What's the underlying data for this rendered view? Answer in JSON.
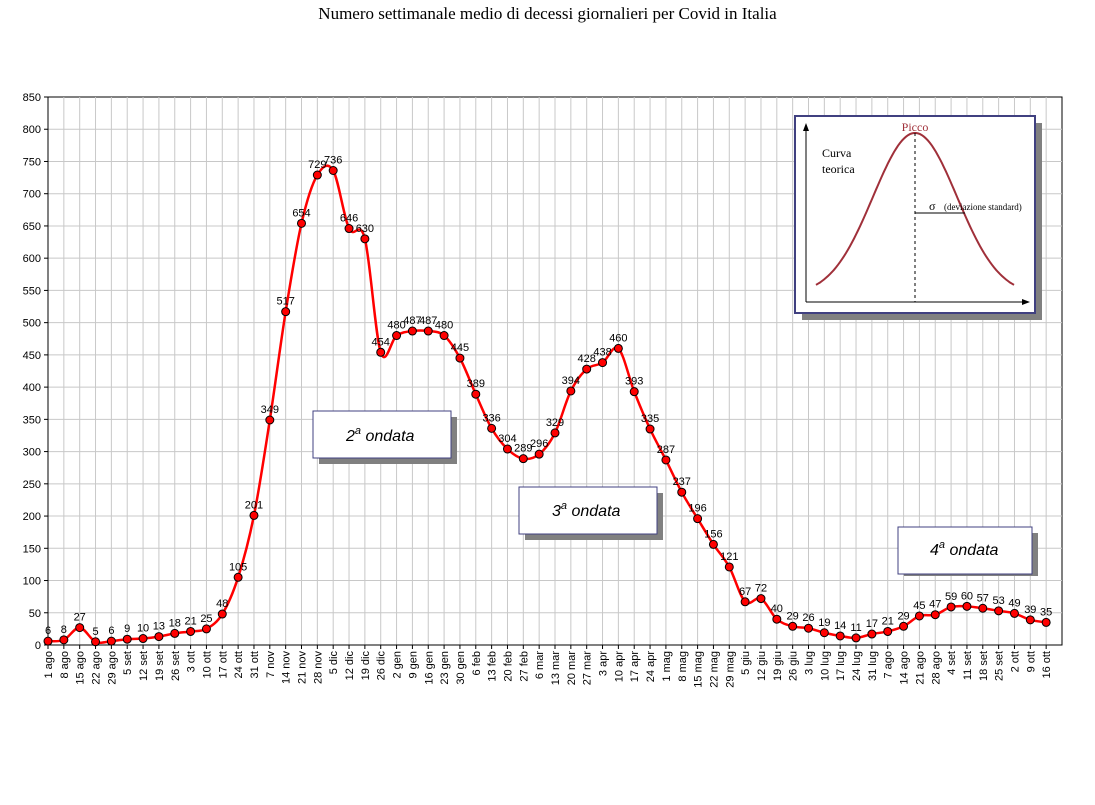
{
  "chart_data": {
    "type": "line",
    "title": "Numero settimanale medio di decessi giornalieri per Covid in Italia",
    "xlabel": "",
    "ylabel": "",
    "ylim": [
      0,
      850
    ],
    "yticks": [
      0,
      50,
      100,
      150,
      200,
      250,
      300,
      350,
      400,
      450,
      500,
      550,
      600,
      650,
      700,
      750,
      800,
      850
    ],
    "grid": true,
    "categories": [
      "1 ago",
      "8 ago",
      "15 ago",
      "22 ago",
      "29 ago",
      "5 set",
      "12 set",
      "19 set",
      "26 set",
      "3 ott",
      "10 ott",
      "17 ott",
      "24 ott",
      "31 ott",
      "7 nov",
      "14 nov",
      "21 nov",
      "28 nov",
      "5 dic",
      "12 dic",
      "19 dic",
      "26 dic",
      "2 gen",
      "9 gen",
      "16 gen",
      "23 gen",
      "30 gen",
      "6 feb",
      "13 feb",
      "20 feb",
      "27 feb",
      "6 mar",
      "13 mar",
      "20 mar",
      "27 mar",
      "3 apr",
      "10 apr",
      "17 apr",
      "24 apr",
      "1 mag",
      "8 mag",
      "15 mag",
      "22 mag",
      "29 mag",
      "5 giu",
      "12 giu",
      "19 giu",
      "26 giu",
      "3 lug",
      "10 lug",
      "17 lug",
      "24 lug",
      "31 lug",
      "7 ago",
      "14 ago",
      "21 ago",
      "28 ago",
      "4 set",
      "11 set",
      "18 set",
      "25 set",
      "2 ott",
      "9 ott",
      "16 ott"
    ],
    "values": [
      6,
      8,
      27,
      5,
      6,
      9,
      10,
      13,
      18,
      21,
      25,
      48,
      105,
      201,
      349,
      517,
      654,
      729,
      736,
      646,
      630,
      454,
      480,
      487,
      487,
      480,
      445,
      389,
      336,
      304,
      289,
      296,
      329,
      394,
      428,
      438,
      460,
      393,
      335,
      287,
      237,
      196,
      156,
      121,
      67,
      72,
      40,
      29,
      26,
      19,
      14,
      11,
      17,
      21,
      29,
      45,
      47,
      59,
      60,
      57,
      53,
      49,
      39,
      35
    ],
    "series_color": "#ff0000",
    "annotations": [
      {
        "text_base": "2",
        "text_sup": "a",
        "text_rest": " ondata"
      },
      {
        "text_base": "3",
        "text_sup": "a",
        "text_rest": " ondata"
      },
      {
        "text_base": "4",
        "text_sup": "a",
        "text_rest": " ondata"
      }
    ],
    "inset": {
      "peak_label": "Picco",
      "curve_label_1": "Curva",
      "curve_label_2": "teorica",
      "sigma_symbol": "σ",
      "sigma_label": "(deviazione standard)",
      "curve_color": "#a0303a",
      "frame_color": "#404080"
    }
  }
}
